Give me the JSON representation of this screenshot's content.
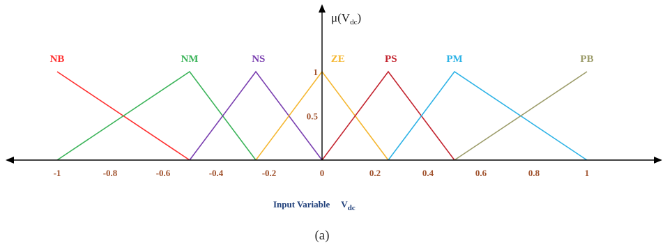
{
  "chart_data": {
    "type": "line",
    "title": "",
    "ylabel": "μ(V",
    "ylabel_sub": "dc",
    "ylabel_close": ")",
    "xlabel": "Input Variable",
    "xlabel_var": "V",
    "xlabel_sub": "dc",
    "xlim": [
      -1.2,
      1.5
    ],
    "ylim": [
      0,
      1
    ],
    "x_ticks": [
      -1,
      -0.8,
      -0.6,
      -0.4,
      -0.2,
      0,
      0.2,
      0.4,
      0.6,
      0.8,
      1
    ],
    "x_tick_labels": [
      "-1",
      "-0.8",
      "-0.6",
      "-0.4",
      "-0.2",
      "0",
      "0.2",
      "0.4",
      "0.6",
      "0.8",
      "1"
    ],
    "y_ticks": [
      0.5,
      1
    ],
    "y_tick_labels": [
      "0.5",
      "1"
    ],
    "series": [
      {
        "name": "NB",
        "color": "#ff3030",
        "points": [
          [
            -1,
            1
          ],
          [
            -0.5,
            0
          ]
        ]
      },
      {
        "name": "NM",
        "color": "#3cb45a",
        "points": [
          [
            -1,
            0
          ],
          [
            -0.5,
            1
          ],
          [
            -0.25,
            0
          ]
        ]
      },
      {
        "name": "NS",
        "color": "#7a3fb0",
        "points": [
          [
            -0.5,
            0
          ],
          [
            -0.25,
            1
          ],
          [
            0,
            0
          ]
        ]
      },
      {
        "name": "ZE",
        "color": "#f5b731",
        "points": [
          [
            -0.25,
            0
          ],
          [
            0,
            1
          ],
          [
            0.25,
            0
          ]
        ]
      },
      {
        "name": "PS",
        "color": "#c3242f",
        "points": [
          [
            0,
            0
          ],
          [
            0.25,
            1
          ],
          [
            0.5,
            0
          ]
        ]
      },
      {
        "name": "PM",
        "color": "#2eb3e6",
        "points": [
          [
            0.25,
            0
          ],
          [
            0.5,
            1
          ],
          [
            1,
            0
          ]
        ]
      },
      {
        "name": "PB",
        "color": "#9c9c6a",
        "points": [
          [
            0.5,
            0
          ],
          [
            1,
            1
          ]
        ]
      }
    ]
  },
  "caption": "(a)"
}
